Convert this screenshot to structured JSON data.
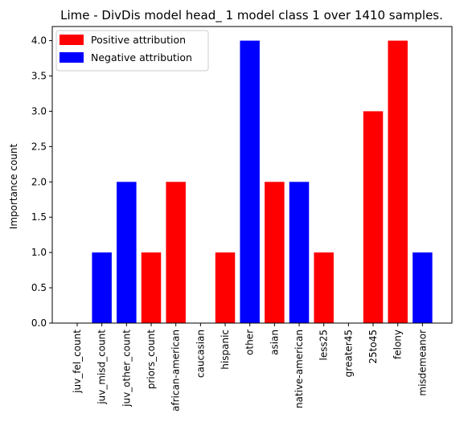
{
  "chart_data": {
    "type": "bar",
    "title": "Lime - DivDis model head_ 1 model class 1 over 1410 samples.",
    "xlabel": "",
    "ylabel": "Importance count",
    "ylim": [
      0,
      4.2
    ],
    "yticks": [
      "0.0",
      "0.5",
      "1.0",
      "1.5",
      "2.0",
      "2.5",
      "3.0",
      "3.5",
      "4.0"
    ],
    "categories": [
      "juv_fel_count",
      "juv_misd_count",
      "juv_other_count",
      "priors_count",
      "african-american",
      "caucasian",
      "hispanic",
      "other",
      "asian",
      "native-american",
      "less25",
      "greater45",
      "25to45",
      "felony",
      "misdemeanor"
    ],
    "values": [
      0,
      1,
      2,
      1,
      2,
      0,
      1,
      4,
      2,
      2,
      1,
      0,
      3,
      4,
      1
    ],
    "attribution": [
      "positive",
      "negative",
      "negative",
      "positive",
      "positive",
      "positive",
      "positive",
      "negative",
      "positive",
      "negative",
      "positive",
      "positive",
      "positive",
      "positive",
      "negative"
    ],
    "grid": false,
    "legend": {
      "placement": "top-left",
      "entries": [
        {
          "label": "Positive attribution",
          "color": "#ff0000"
        },
        {
          "label": "Negative attribution",
          "color": "#0000ff"
        }
      ]
    },
    "colors": {
      "positive": "#ff0000",
      "negative": "#0000ff"
    }
  }
}
